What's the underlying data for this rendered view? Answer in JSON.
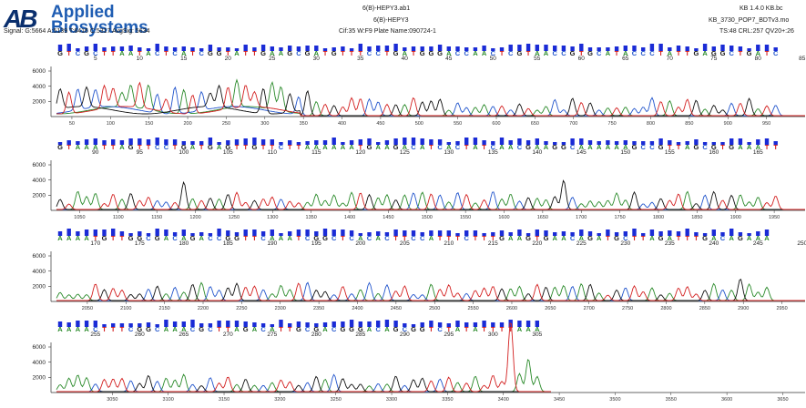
{
  "header": {
    "logo_line1": "Applied",
    "logo_line2": "Biosystems",
    "signal": "Signal: G:5664 A:5139 T:6416 C:5317 AvgSig: 5634",
    "file_name": "6(B)-HEPY3.ab1",
    "sample_name": "6(B)-HEPY3",
    "run_info": "Cif:35 W:F9 Plate Name:090724-1",
    "kb_version": "KB 1.4.0  KB.bc",
    "kb_model": "KB_3730_POP7_BDTv3.mo",
    "quality": "TS:48 CRL:257 QV20+:26"
  },
  "chart_data": {
    "type": "line",
    "title": "",
    "y_ticks": [
      2000,
      4000,
      6000
    ],
    "ylim": [
      0,
      9000
    ],
    "colors": {
      "A": "#2a8a2a",
      "C": "#2255cc",
      "G": "#111111",
      "T": "#d32020"
    },
    "rows": [
      {
        "bases": "GTCGCTTAATACTCATCGGTATTGAAGCGATGTTTCCTGATGGGACCAACTCGTAACCGTGCATACCCTATTGAGGCTGATC",
        "base_ticks": [
          5,
          10,
          15,
          20,
          25,
          30,
          35,
          40,
          45,
          50,
          55,
          60,
          65,
          70,
          75,
          80,
          85
        ],
        "scan_ticks": [
          50,
          100,
          150,
          200,
          250,
          300,
          350,
          400,
          450,
          500,
          550,
          600,
          650,
          700,
          750,
          800,
          850,
          900,
          950
        ],
        "scan_start": 30,
        "scan_end": 1000
      },
      {
        "bases": "GTAAATTAGTTCCTGATGAGTTGTTCTTAAAAAATGAAGACATCACTATCAACGAAGGCAAAAAAGCCGTTAGCGTGAAATT",
        "base_ticks": [
          90,
          95,
          100,
          105,
          110,
          115,
          120,
          125,
          130,
          135,
          140,
          145,
          150,
          155,
          160,
          165
        ],
        "scan_ticks": [
          1050,
          1100,
          1150,
          1200,
          1250,
          1300,
          1350,
          1400,
          1450,
          1500,
          1550,
          1600,
          1650,
          1700,
          1750,
          1800,
          1850,
          1900,
          1950
        ],
        "scan_start": 1020,
        "scan_end": 1990
      },
      {
        "bases": "AAAATGTTGGCGACAGACCGGTTCAAATCGGCTCACACTTCCATTTCTTTGAAGTGAACAGATGCTTAGATTTGACAGAAA",
        "base_ticks": [
          170,
          175,
          180,
          185,
          190,
          195,
          200,
          205,
          210,
          215,
          220,
          225,
          230,
          235,
          240,
          245,
          250
        ],
        "scan_ticks": [
          2050,
          2100,
          2150,
          2200,
          2250,
          2300,
          2350,
          2400,
          2450,
          2500,
          2550,
          2600,
          2650,
          2700,
          2750,
          2800,
          2850,
          2900,
          2950
        ],
        "scan_start": 2010,
        "scan_end": 2980
      },
      {
        "bases": "AAAACTTTCGGCAAACGCTTAGACATTGCGACGGGACAGCGGTCTATATTTTAAA",
        "base_ticks": [
          255,
          260,
          265,
          270,
          275,
          280,
          285,
          290,
          295,
          300,
          305
        ],
        "scan_ticks": [
          3050,
          3100,
          3150,
          3200,
          3250,
          3300,
          3350,
          3400,
          3450,
          3500,
          3550,
          3600,
          3650
        ],
        "scan_start": 3000,
        "scan_end": 3670
      }
    ]
  }
}
